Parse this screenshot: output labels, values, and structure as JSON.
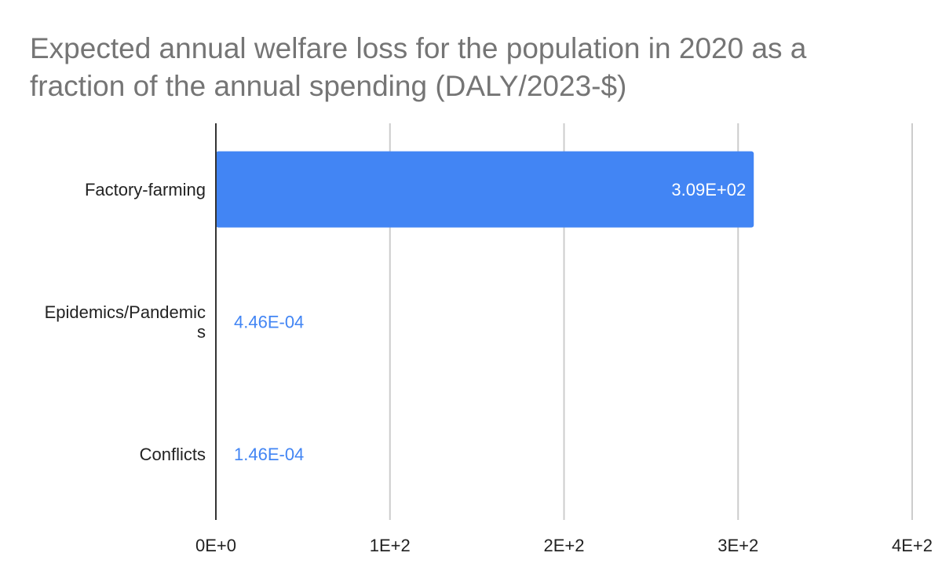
{
  "chart_data": {
    "type": "bar",
    "orientation": "horizontal",
    "title": "Expected annual welfare loss for the population in 2020 as a fraction of the annual spending (DALY/2023-$)",
    "categories": [
      "Factory-farming",
      "Epidemics/Pandemics",
      "Conflicts"
    ],
    "category_label_lines": [
      [
        "Factory-farming"
      ],
      [
        "Epidemics/Pandemic",
        "s"
      ],
      [
        "Conflicts"
      ]
    ],
    "values": [
      309,
      0.000446,
      0.000146
    ],
    "value_labels": [
      "3.09E+02",
      "4.46E-04",
      "1.46E-04"
    ],
    "xlim": [
      0,
      400
    ],
    "xticks": [
      0,
      100,
      200,
      300,
      400
    ],
    "xtick_labels": [
      "0E+0",
      "1E+2",
      "2E+2",
      "3E+2",
      "4E+2"
    ],
    "xlabel": "",
    "ylabel": "",
    "grid": true,
    "legend": "none",
    "colors": {
      "bar": "#4285f4",
      "bar_label_inside": "#ffffff",
      "bar_label_outside": "#4285f4",
      "grid": "#cccccc",
      "axis": "#333333",
      "tick_text": "#222222",
      "title": "#757575"
    }
  }
}
